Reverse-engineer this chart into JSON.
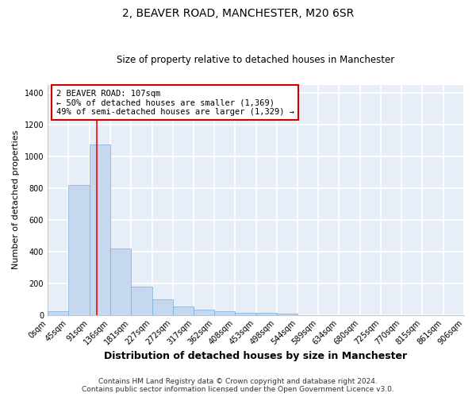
{
  "title": "2, BEAVER ROAD, MANCHESTER, M20 6SR",
  "subtitle": "Size of property relative to detached houses in Manchester",
  "xlabel": "Distribution of detached houses by size in Manchester",
  "ylabel": "Number of detached properties",
  "bin_edges": [
    0,
    45,
    91,
    136,
    181,
    227,
    272,
    317,
    362,
    408,
    453,
    498,
    544,
    589,
    634,
    680,
    725,
    770,
    815,
    861,
    906
  ],
  "bar_heights": [
    25,
    820,
    1075,
    420,
    180,
    100,
    55,
    32,
    22,
    15,
    15,
    10,
    0,
    0,
    0,
    0,
    0,
    0,
    0,
    0
  ],
  "bar_color": "#c5d8f0",
  "bar_edge_color": "#7aadd4",
  "bar_linewidth": 0.5,
  "red_line_x": 107,
  "annotation_line1": "2 BEAVER ROAD: 107sqm",
  "annotation_line2": "← 50% of detached houses are smaller (1,369)",
  "annotation_line3": "49% of semi-detached houses are larger (1,329) →",
  "annotation_box_color": "#ffffff",
  "annotation_box_edge": "#cc0000",
  "ylim_max": 1450,
  "yticks": [
    0,
    200,
    400,
    600,
    800,
    1000,
    1200,
    1400
  ],
  "footer_line1": "Contains HM Land Registry data © Crown copyright and database right 2024.",
  "footer_line2": "Contains public sector information licensed under the Open Government Licence v3.0.",
  "fig_bg_color": "#ffffff",
  "plot_bg_color": "#e8eef8",
  "grid_color": "#ffffff",
  "title_fontsize": 10,
  "subtitle_fontsize": 8.5,
  "xlabel_fontsize": 9,
  "ylabel_fontsize": 8,
  "tick_fontsize": 7,
  "annotation_fontsize": 7.5,
  "footer_fontsize": 6.5
}
